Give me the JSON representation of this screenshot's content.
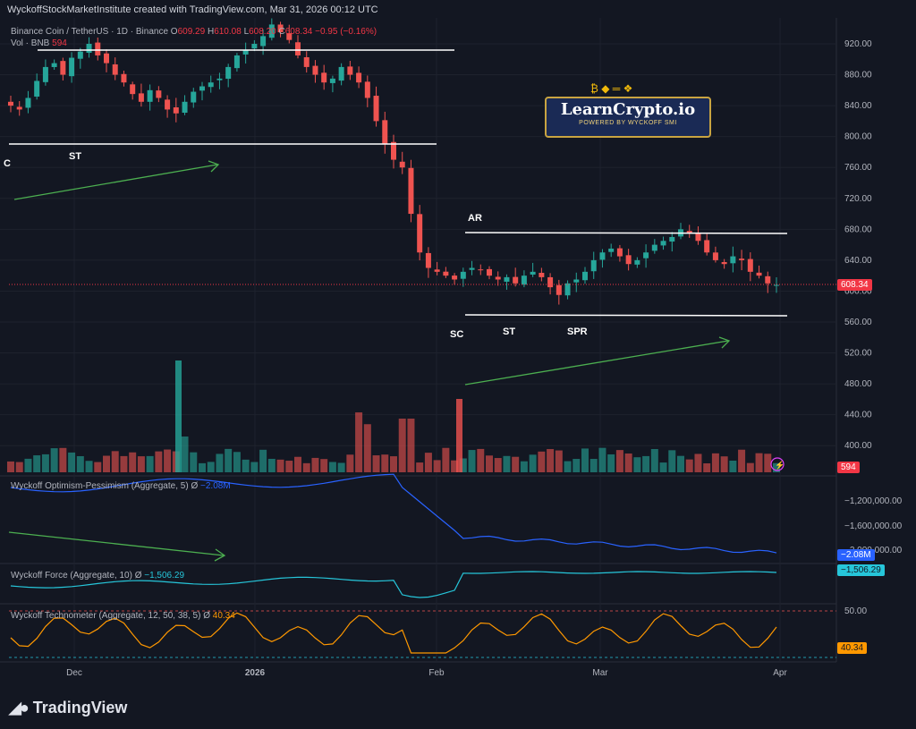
{
  "caption": "WyckoffStockMarketInstitute created with TradingView.com, Mar 31, 2026 00:12 UTC",
  "symbol_line": {
    "name": "Binance Coin / TetherUS · 1D · Binance",
    "o_label": "O",
    "o": "609.29",
    "h_label": "H",
    "h": "610.08",
    "l_label": "L",
    "l": "608.20",
    "c_label": "C",
    "c": "608.34",
    "change": "−0.95 (−0.16%)"
  },
  "vol_line": {
    "label": "Vol · BNB",
    "value": "594"
  },
  "branding": {
    "title": "LearnCrypto.io",
    "subtitle": "POWERED BY WYCKOFF SMI",
    "icons": "₿ ◆ ═ ❖"
  },
  "footer": {
    "logo_text": "TradingView"
  },
  "colors": {
    "up": "#26a69a",
    "down": "#ef5350",
    "bg": "#131722",
    "opt_line": "#2962ff",
    "force_line": "#26c6da",
    "tech_line": "#ff9800",
    "annot_line": "#ffffff",
    "arrow": "#4caf50"
  },
  "chart_data": [
    {
      "type": "candlestick",
      "y_ticks": [
        "920.00",
        "880.00",
        "840.00",
        "800.00",
        "760.00",
        "720.00",
        "680.00",
        "640.00",
        "600.00",
        "560.00",
        "520.00",
        "480.00",
        "440.00",
        "400.00"
      ],
      "x_ticks": [
        "Dec",
        "2026",
        "Feb",
        "Mar",
        "Apr"
      ],
      "last_price": "608.34",
      "last_volume": "594",
      "annotations": [
        "C",
        "ST",
        "AR",
        "SC",
        "ST",
        "SPR"
      ],
      "series": [
        {
          "name": "price",
          "values": [
            840,
            835,
            850,
            872,
            890,
            895,
            880,
            902,
            910,
            920,
            905,
            895,
            880,
            870,
            855,
            845,
            860,
            850,
            835,
            830,
            845,
            858,
            865,
            870,
            875,
            890,
            905,
            912,
            920,
            930,
            945,
            935,
            925,
            905,
            890,
            880,
            870,
            875,
            890,
            880,
            870,
            850,
            820,
            790,
            770,
            760,
            700,
            650,
            630,
            625,
            620,
            615,
            625,
            630,
            628,
            620,
            615,
            618,
            610,
            620,
            625,
            618,
            605,
            595,
            610,
            615,
            625,
            640,
            650,
            655,
            645,
            635,
            640,
            650,
            660,
            665,
            670,
            680,
            675,
            665,
            650,
            640,
            635,
            645,
            640,
            625,
            620,
            610,
            608
          ]
        }
      ]
    },
    {
      "type": "line",
      "title": "Wyckoff Optimism-Pessimism (Aggregate, 5)",
      "symbol": "Ø",
      "value": "−2.08M",
      "y_ticks": [
        "−1,200,000.00",
        "−1,600,000.00",
        "−2,000,000.00"
      ]
    },
    {
      "type": "line",
      "title": "Wyckoff Force (Aggregate, 10)",
      "symbol": "Ø",
      "value": "−1,506.29"
    },
    {
      "type": "line",
      "title": "Wyckoff Technometer (Aggregate, 12, 50, 38, 5)",
      "symbol": "Ø",
      "value": "40.34",
      "y_ticks": [
        "50.00"
      ]
    }
  ]
}
